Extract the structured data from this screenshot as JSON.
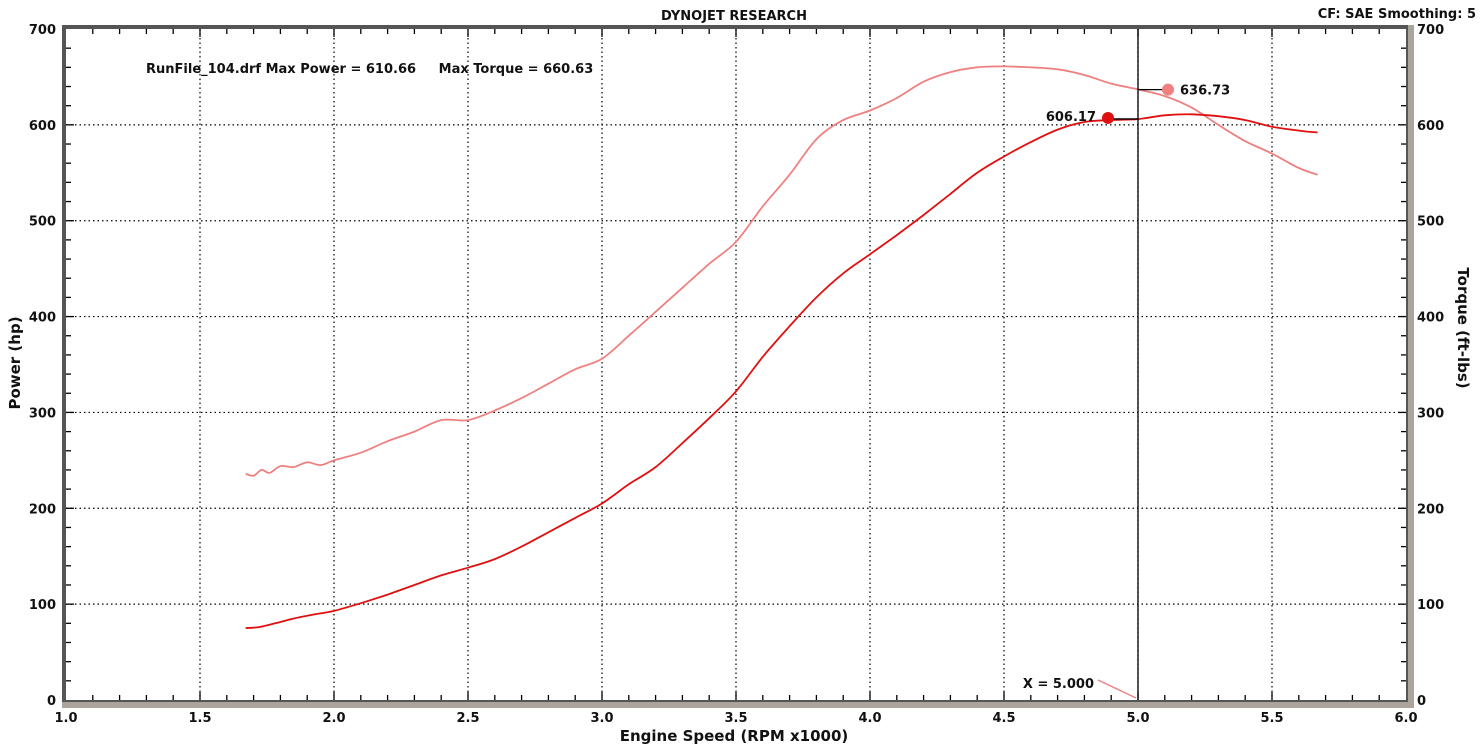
{
  "chart_data": {
    "type": "line",
    "title": "DYNOJET RESEARCH",
    "header_right": "CF: SAE  Smoothing: 5",
    "annotation": "RunFile_104.drf Max Power = 610.66     Max Torque = 660.63",
    "xlabel": "Engine Speed (RPM x1000)",
    "ylabel_left": "Power (hp)",
    "ylabel_right": "Torque (ft-lbs)",
    "xlim": [
      1.0,
      6.0
    ],
    "ylim": [
      0,
      700
    ],
    "x_ticks": [
      "1.0",
      "1.5",
      "2.0",
      "2.5",
      "3.0",
      "3.5",
      "4.0",
      "4.5",
      "5.0",
      "5.5",
      "6.0"
    ],
    "y_ticks": [
      "0",
      "100",
      "200",
      "300",
      "400",
      "500",
      "600",
      "700"
    ],
    "grid": true,
    "cursor": {
      "x": 5.0,
      "label": "X = 5.000",
      "power_value": "606.17",
      "torque_value": "636.73"
    },
    "colors": {
      "power": "#e01010",
      "torque": "#f08080",
      "frame": "#aaa49a",
      "grid": "#000000",
      "cursor": "#000000"
    },
    "series": [
      {
        "name": "Power",
        "x": [
          1.67,
          1.72,
          1.78,
          1.85,
          1.92,
          2.0,
          2.1,
          2.2,
          2.3,
          2.4,
          2.5,
          2.6,
          2.7,
          2.8,
          2.9,
          3.0,
          3.1,
          3.2,
          3.3,
          3.4,
          3.5,
          3.6,
          3.7,
          3.8,
          3.9,
          4.0,
          4.1,
          4.2,
          4.3,
          4.4,
          4.5,
          4.6,
          4.7,
          4.8,
          4.9,
          5.0,
          5.1,
          5.2,
          5.3,
          5.4,
          5.5,
          5.6,
          5.67
        ],
        "values": [
          75,
          76,
          80,
          85,
          89,
          93,
          101,
          110,
          120,
          130,
          138,
          147,
          160,
          175,
          190,
          205,
          225,
          243,
          268,
          294,
          322,
          358,
          390,
          420,
          445,
          465,
          485,
          506,
          528,
          550,
          567,
          582,
          595,
          603,
          605,
          606,
          610,
          611,
          609,
          605,
          598,
          594,
          592
        ]
      },
      {
        "name": "Torque",
        "x": [
          1.67,
          1.7,
          1.73,
          1.76,
          1.8,
          1.85,
          1.9,
          1.95,
          2.0,
          2.1,
          2.2,
          2.3,
          2.4,
          2.5,
          2.6,
          2.7,
          2.8,
          2.9,
          3.0,
          3.1,
          3.2,
          3.3,
          3.4,
          3.5,
          3.6,
          3.7,
          3.8,
          3.9,
          4.0,
          4.1,
          4.2,
          4.3,
          4.4,
          4.5,
          4.6,
          4.7,
          4.8,
          4.9,
          5.0,
          5.1,
          5.2,
          5.3,
          5.4,
          5.5,
          5.6,
          5.67
        ],
        "values": [
          236,
          234,
          240,
          237,
          244,
          243,
          248,
          245,
          250,
          258,
          270,
          280,
          292,
          292,
          302,
          315,
          330,
          345,
          356,
          380,
          405,
          430,
          455,
          478,
          515,
          548,
          585,
          605,
          615,
          628,
          645,
          655,
          660,
          661,
          660,
          658,
          652,
          643,
          637,
          630,
          618,
          600,
          583,
          570,
          555,
          548
        ]
      }
    ]
  }
}
